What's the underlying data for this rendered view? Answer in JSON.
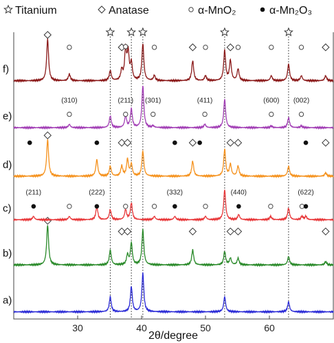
{
  "chart_data": {
    "type": "line",
    "xlabel": "2θ/degree",
    "xlim": [
      20,
      70
    ],
    "xticks": [
      30,
      40,
      50,
      60
    ],
    "grid": false,
    "legend": {
      "placement": "top",
      "entries": [
        {
          "marker": "star",
          "label": "Titanium"
        },
        {
          "marker": "diamond",
          "label": "Anatase"
        },
        {
          "marker": "circle-open",
          "label": "α-MnO₂"
        },
        {
          "marker": "circle-filled",
          "label": "α-Mn₂O₃"
        }
      ]
    },
    "reference_lines": {
      "marker": "star",
      "x": [
        35.1,
        38.4,
        40.2,
        53.0,
        63.0
      ]
    },
    "series": [
      {
        "name": "a)",
        "color": "#2b2bd6",
        "baseline": 0.05,
        "peaks": [
          [
            35.1,
            0.45
          ],
          [
            38.4,
            0.75
          ],
          [
            40.2,
            1.15
          ],
          [
            53.0,
            0.45
          ],
          [
            63.0,
            0.3
          ]
        ],
        "markers": [],
        "hkl": []
      },
      {
        "name": "b)",
        "color": "#2a8a2a",
        "baseline": 1.45,
        "peaks": [
          [
            25.3,
            1.2
          ],
          [
            35.1,
            0.45
          ],
          [
            37.8,
            0.3
          ],
          [
            38.4,
            0.65
          ],
          [
            40.2,
            1.05
          ],
          [
            48.0,
            0.45
          ],
          [
            53.0,
            0.4
          ],
          [
            53.9,
            0.2
          ],
          [
            55.1,
            0.2
          ],
          [
            63.0,
            0.25
          ],
          [
            68.8,
            0.1
          ]
        ],
        "markers": [
          {
            "type": "diamond",
            "x": 25.3
          },
          {
            "type": "diamond",
            "x": 36.9
          },
          {
            "type": "diamond",
            "x": 37.8
          },
          {
            "type": "diamond",
            "x": 48.0
          },
          {
            "type": "diamond",
            "x": 53.9
          },
          {
            "type": "diamond",
            "x": 55.1
          },
          {
            "type": "diamond",
            "x": 68.8
          }
        ],
        "hkl": []
      },
      {
        "name": "c)",
        "color": "#e8383a",
        "baseline": 2.8,
        "peaks": [
          [
            23.1,
            0.1
          ],
          [
            28.7,
            0.1
          ],
          [
            33.0,
            0.4
          ],
          [
            35.1,
            0.3
          ],
          [
            37.5,
            0.3
          ],
          [
            38.4,
            0.5
          ],
          [
            42.0,
            0.1
          ],
          [
            45.2,
            0.1
          ],
          [
            50.0,
            0.1
          ],
          [
            53.0,
            0.9
          ],
          [
            55.2,
            0.15
          ],
          [
            60.2,
            0.1
          ],
          [
            63.0,
            0.35
          ],
          [
            65.1,
            0.1
          ],
          [
            65.7,
            0.1
          ]
        ],
        "markers": [
          {
            "type": "circle-filled",
            "x": 23.1
          },
          {
            "type": "circle-open",
            "x": 28.7
          },
          {
            "type": "circle-filled",
            "x": 33.0
          },
          {
            "type": "circle-open",
            "x": 37.5
          },
          {
            "type": "circle-open",
            "x": 42.0
          },
          {
            "type": "circle-filled",
            "x": 45.2
          },
          {
            "type": "circle-open",
            "x": 50.0
          },
          {
            "type": "circle-filled",
            "x": 55.2
          },
          {
            "type": "circle-open",
            "x": 60.2
          },
          {
            "type": "circle-open",
            "x": 65.1
          },
          {
            "type": "circle-filled",
            "x": 65.7
          }
        ],
        "hkl": [
          {
            "x": 23.1,
            "label": "(211)"
          },
          {
            "x": 33.0,
            "label": "(222)"
          },
          {
            "x": 45.2,
            "label": "(332)"
          },
          {
            "x": 55.2,
            "label": "(440)"
          },
          {
            "x": 65.7,
            "label": "(622)"
          }
        ]
      },
      {
        "name": "d)",
        "color": "#f5921e",
        "baseline": 4.1,
        "peaks": [
          [
            25.3,
            1.1
          ],
          [
            33.0,
            0.5
          ],
          [
            35.1,
            0.3
          ],
          [
            36.9,
            0.3
          ],
          [
            37.8,
            0.5
          ],
          [
            38.4,
            0.35
          ],
          [
            40.2,
            0.75
          ],
          [
            48.0,
            0.45
          ],
          [
            53.0,
            0.8
          ],
          [
            53.9,
            0.35
          ],
          [
            55.1,
            0.3
          ],
          [
            63.0,
            0.3
          ],
          [
            68.8,
            0.1
          ]
        ],
        "markers": [
          {
            "type": "circle-filled",
            "x": 22.5
          },
          {
            "type": "diamond",
            "x": 25.3
          },
          {
            "type": "circle-filled",
            "x": 33.0
          },
          {
            "type": "diamond",
            "x": 36.9
          },
          {
            "type": "diamond",
            "x": 37.8
          },
          {
            "type": "circle-filled",
            "x": 45.2
          },
          {
            "type": "diamond",
            "x": 48.0
          },
          {
            "type": "circle-filled",
            "x": 49.1
          },
          {
            "type": "diamond",
            "x": 53.9
          },
          {
            "type": "diamond",
            "x": 55.1
          },
          {
            "type": "circle-filled",
            "x": 65.7
          },
          {
            "type": "diamond",
            "x": 68.8
          }
        ],
        "hkl": []
      },
      {
        "name": "e)",
        "color": "#a23fb5",
        "baseline": 5.55,
        "peaks": [
          [
            28.7,
            0.1
          ],
          [
            35.1,
            0.35
          ],
          [
            37.5,
            0.35
          ],
          [
            38.4,
            0.55
          ],
          [
            40.2,
            1.25
          ],
          [
            41.8,
            0.05
          ],
          [
            49.9,
            0.1
          ],
          [
            53.0,
            0.85
          ],
          [
            60.3,
            0.05
          ],
          [
            63.0,
            0.3
          ],
          [
            65.0,
            0.05
          ]
        ],
        "markers": [
          {
            "type": "circle-open",
            "x": 28.7
          },
          {
            "type": "circle-open",
            "x": 37.5
          },
          {
            "type": "circle-open",
            "x": 41.8
          },
          {
            "type": "circle-open",
            "x": 49.9
          },
          {
            "type": "circle-open",
            "x": 60.3
          },
          {
            "type": "circle-open",
            "x": 65.0
          }
        ],
        "hkl": [
          {
            "x": 28.7,
            "label": "(310)"
          },
          {
            "x": 37.5,
            "label": "(211)"
          },
          {
            "x": 41.8,
            "label": "(301)"
          },
          {
            "x": 49.9,
            "label": "(411)"
          },
          {
            "x": 60.3,
            "label": "(600)"
          },
          {
            "x": 65.0,
            "label": "(002)"
          }
        ]
      },
      {
        "name": "f)",
        "color": "#8b1a1a",
        "baseline": 6.95,
        "peaks": [
          [
            25.3,
            1.25
          ],
          [
            28.7,
            0.2
          ],
          [
            35.1,
            0.3
          ],
          [
            36.9,
            0.3
          ],
          [
            37.5,
            0.9
          ],
          [
            37.9,
            0.8
          ],
          [
            38.4,
            0.5
          ],
          [
            40.2,
            1.1
          ],
          [
            42.0,
            0.15
          ],
          [
            48.0,
            0.6
          ],
          [
            50.0,
            0.15
          ],
          [
            53.0,
            0.9
          ],
          [
            53.9,
            0.6
          ],
          [
            55.1,
            0.35
          ],
          [
            60.3,
            0.15
          ],
          [
            63.0,
            0.5
          ],
          [
            65.0,
            0.15
          ],
          [
            68.8,
            0.15
          ]
        ],
        "markers": [
          {
            "type": "diamond",
            "x": 25.3
          },
          {
            "type": "circle-open",
            "x": 28.7
          },
          {
            "type": "diamond",
            "x": 36.9
          },
          {
            "type": "circle-open",
            "x": 37.5
          },
          {
            "type": "circle-open",
            "x": 42.0
          },
          {
            "type": "diamond",
            "x": 48.0
          },
          {
            "type": "circle-open",
            "x": 50.0
          },
          {
            "type": "diamond",
            "x": 53.9
          },
          {
            "type": "circle-open",
            "x": 55.1
          },
          {
            "type": "circle-open",
            "x": 60.3
          },
          {
            "type": "circle-open",
            "x": 65.0
          },
          {
            "type": "diamond",
            "x": 68.8
          }
        ],
        "hkl": []
      }
    ]
  }
}
